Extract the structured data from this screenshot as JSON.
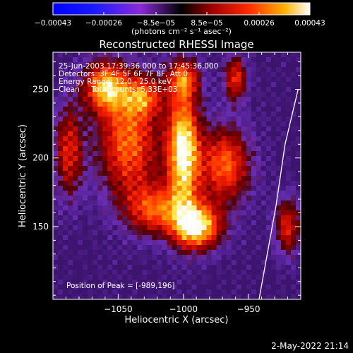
{
  "chart_data": {
    "type": "heatmap",
    "title": "Reconstructed RHESSI Image",
    "xlabel": "Heliocentric X (arcsec)",
    "ylabel": "Heliocentric Y (arcsec)",
    "xlim": [
      -1100,
      -910
    ],
    "ylim": [
      97,
      277
    ],
    "x_ticks": [
      -1050,
      -1000,
      -950
    ],
    "x_tick_labels": [
      "−1050",
      "−1000",
      "−950"
    ],
    "y_ticks": [
      150,
      200,
      250
    ],
    "y_tick_labels": [
      "150",
      "200",
      "250"
    ],
    "colorbar": {
      "range": [
        -0.00043,
        0.00043
      ],
      "ticks": [
        -0.00043,
        -0.00026,
        -8.5e-05,
        8.5e-05,
        0.00026,
        0.00043
      ],
      "tick_labels": [
        "−0.00043",
        "−0.00026",
        "−8.5e−05",
        "8.5e−05",
        "0.00026",
        "0.00043"
      ],
      "units_label": "(photons cm⁻² s⁻¹ asec⁻²)"
    },
    "sources": [
      {
        "x": -1000,
        "y": 205,
        "sx": 9,
        "sy": 32,
        "amp": 1.0
      },
      {
        "x": -989,
        "y": 150,
        "sx": 13,
        "sy": 12,
        "amp": 0.95
      },
      {
        "x": -1042,
        "y": 212,
        "sx": 17,
        "sy": 30,
        "amp": 0.72
      },
      {
        "x": -1060,
        "y": 252,
        "sx": 12,
        "sy": 13,
        "amp": 0.78
      },
      {
        "x": -968,
        "y": 195,
        "sx": 14,
        "sy": 20,
        "amp": 0.7
      },
      {
        "x": -1022,
        "y": 162,
        "sx": 15,
        "sy": 13,
        "amp": 0.6
      },
      {
        "x": -1088,
        "y": 205,
        "sx": 8,
        "sy": 24,
        "amp": 0.55
      },
      {
        "x": -960,
        "y": 258,
        "sx": 6,
        "sy": 12,
        "amp": 0.6
      },
      {
        "x": -1000,
        "y": 258,
        "sx": 9,
        "sy": 10,
        "amp": 0.55
      },
      {
        "x": -920,
        "y": 150,
        "sx": 7,
        "sy": 15,
        "amp": 0.55
      },
      {
        "x": -1030,
        "y": 245,
        "sx": 10,
        "sy": 10,
        "amp": 0.5
      }
    ],
    "limb_line": [
      [
        -942,
        97
      ],
      [
        -929,
        165
      ],
      [
        -922,
        210
      ],
      [
        -912,
        250
      ]
    ]
  },
  "annotations": {
    "time_range": "25-Jun-2003 17:39:36.000 to 17:45:36.000",
    "detectors": "Detectors: 3F 4F 5F 6F 7F 8F, Att 0",
    "energy": "Energy Range: 12.0 - 25.0 keV",
    "clean": "Clean     Total counts: 5.33E+03",
    "peak": "Position of Peak = [-989,196]"
  },
  "footer": {
    "timestamp": "2-May-2022 21:14"
  }
}
